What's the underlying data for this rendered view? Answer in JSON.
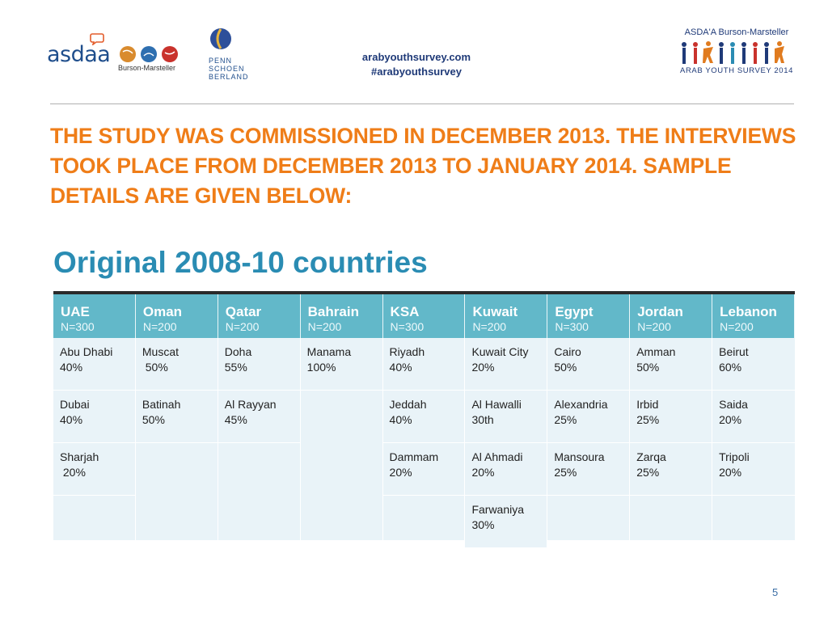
{
  "header": {
    "logo_asdaa": "asdaa",
    "logo_bm": "Burson-Marsteller",
    "logo_psb": [
      "PENN",
      "SCHOEN",
      "BERLAND"
    ],
    "website": "arabyouthsurvey.com",
    "hashtag": "#arabyouthsurvey",
    "brand_top": "ASDA'A Burson-Marsteller",
    "brand_bottom": "ARAB YOUTH SURVEY 2014"
  },
  "headline": "THE STUDY WAS COMMISSIONED IN DECEMBER 2013. THE INTERVIEWS TOOK PLACE FROM DECEMBER 2013 TO JANUARY 2014. SAMPLE DETAILS ARE GIVEN BELOW:",
  "subtitle": "Original 2008-10 countries",
  "colors": {
    "orange": "#ef7d18",
    "teal_header": "#62b8c9",
    "title_blue": "#2a8cb3",
    "cell_bg": "#e9f3f8"
  },
  "countries": [
    {
      "name": "UAE",
      "n": "N=300",
      "cities": [
        {
          "city": "Abu Dhabi",
          "pct": "40%"
        },
        {
          "city": "Dubai",
          "pct": "40%"
        },
        {
          "city": "Sharjah",
          "pct": " 20%"
        }
      ]
    },
    {
      "name": "Oman",
      "n": "N=200",
      "cities": [
        {
          "city": "Muscat",
          "pct": " 50%"
        },
        {
          "city": "Batinah",
          "pct": "50%"
        }
      ]
    },
    {
      "name": "Qatar",
      "n": "N=200",
      "cities": [
        {
          "city": "Doha",
          "pct": "55%"
        },
        {
          "city": "Al Rayyan",
          "pct": "45%"
        }
      ]
    },
    {
      "name": "Bahrain",
      "n": "N=200",
      "cities": [
        {
          "city": "Manama",
          "pct": "100%"
        }
      ]
    },
    {
      "name": "KSA",
      "n": "N=300",
      "cities": [
        {
          "city": "Riyadh",
          "pct": "40%"
        },
        {
          "city": "Jeddah",
          "pct": "40%"
        },
        {
          "city": "Dammam",
          "pct": "20%"
        }
      ]
    },
    {
      "name": "Kuwait",
      "n": "N=200",
      "cities": [
        {
          "city": "Kuwait City",
          "pct": "20%"
        },
        {
          "city": "Al Hawalli",
          "pct": "30th"
        },
        {
          "city": "Al Ahmadi",
          "pct": "20%"
        },
        {
          "city": "Farwaniya",
          "pct": "30%"
        }
      ]
    },
    {
      "name": "Egypt",
      "n": "N=300",
      "cities": [
        {
          "city": "Cairo",
          "pct": "50%"
        },
        {
          "city": "Alexandria",
          "pct": "25%"
        },
        {
          "city": "Mansoura",
          "pct": "25%"
        }
      ]
    },
    {
      "name": "Jordan",
      "n": "N=200",
      "cities": [
        {
          "city": "Amman",
          "pct": "50%"
        },
        {
          "city": "Irbid",
          "pct": "25%"
        },
        {
          "city": "Zarqa",
          "pct": "25%"
        }
      ]
    },
    {
      "name": "Lebanon",
      "n": "N=200",
      "cities": [
        {
          "city": "Beirut",
          "pct": "60%"
        },
        {
          "city": "Saida",
          "pct": "20%"
        },
        {
          "city": "Tripoli",
          "pct": "20%"
        }
      ]
    }
  ],
  "page_number": "5"
}
